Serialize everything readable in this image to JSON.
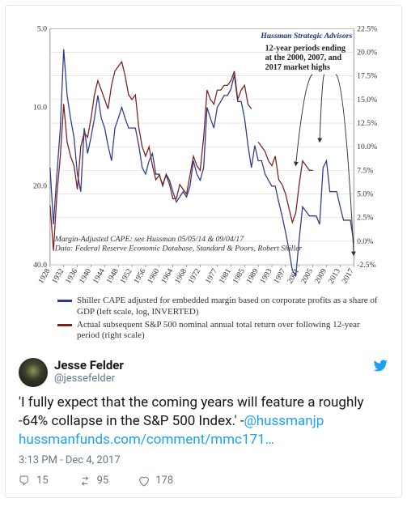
{
  "chart": {
    "attribution": "Hussman Strategic Advisors",
    "annotation": {
      "l1": "12-year periods ending",
      "l2": "at the 2000, 2007, and",
      "l3": "2017 market highs"
    },
    "note": {
      "l1": "Margin-Adjusted CAPE: see Hussman 05/05/14 & 09/04/17",
      "l2": "Data: Federal Reserve Economic Database, Standard & Poors, Robert Shiller"
    },
    "left_axis": {
      "ticks": [
        5.0,
        10.0,
        20.0,
        40.0
      ],
      "scale": "log_inverted"
    },
    "right_axis": {
      "ticks": [
        "22.5%",
        "20.0%",
        "17.5%",
        "15.0%",
        "12.5%",
        "10.0%",
        "7.5%",
        "5.0%",
        "2.5%",
        "0.0%",
        "-2.5%"
      ],
      "min": -2.5,
      "max": 22.5,
      "step": 2.5
    },
    "x_ticks": [
      1928,
      1932,
      1936,
      1940,
      1944,
      1948,
      1952,
      1956,
      1960,
      1964,
      1968,
      1972,
      1977,
      1981,
      1985,
      1989,
      1993,
      1997,
      2001,
      2005,
      2009,
      2013,
      2017
    ],
    "x_min": 1928,
    "x_max": 2017,
    "colors": {
      "series_a": "#2b3a8f",
      "series_b": "#7a2020",
      "grid": "#d9d4c9",
      "axis": "#666",
      "bg": "#ffffff"
    },
    "series_a": {
      "name": "Shiller CAPE adjusted (log, inverted)",
      "axis": "left",
      "points": [
        [
          1928,
          17
        ],
        [
          1929,
          28
        ],
        [
          1930,
          18
        ],
        [
          1931,
          12
        ],
        [
          1932,
          6
        ],
        [
          1933,
          9
        ],
        [
          1934,
          11
        ],
        [
          1935,
          13
        ],
        [
          1936,
          18
        ],
        [
          1937,
          21
        ],
        [
          1938,
          12
        ],
        [
          1939,
          15
        ],
        [
          1940,
          13
        ],
        [
          1941,
          11
        ],
        [
          1942,
          9
        ],
        [
          1943,
          11
        ],
        [
          1944,
          12
        ],
        [
          1945,
          14
        ],
        [
          1946,
          16
        ],
        [
          1947,
          12
        ],
        [
          1948,
          11
        ],
        [
          1949,
          10
        ],
        [
          1950,
          11
        ],
        [
          1951,
          12
        ],
        [
          1952,
          12
        ],
        [
          1953,
          12
        ],
        [
          1954,
          14
        ],
        [
          1955,
          17
        ],
        [
          1956,
          18
        ],
        [
          1957,
          16
        ],
        [
          1958,
          15
        ],
        [
          1959,
          18
        ],
        [
          1960,
          18
        ],
        [
          1961,
          20
        ],
        [
          1962,
          18
        ],
        [
          1963,
          19
        ],
        [
          1964,
          21
        ],
        [
          1965,
          23
        ],
        [
          1966,
          22
        ],
        [
          1967,
          21
        ],
        [
          1968,
          22
        ],
        [
          1969,
          20
        ],
        [
          1970,
          16
        ],
        [
          1971,
          18
        ],
        [
          1972,
          19
        ],
        [
          1973,
          17
        ],
        [
          1974,
          10
        ],
        [
          1975,
          11
        ],
        [
          1976,
          12
        ],
        [
          1977,
          10
        ],
        [
          1978,
          9.5
        ],
        [
          1979,
          9
        ],
        [
          1980,
          9
        ],
        [
          1981,
          8.5
        ],
        [
          1982,
          7.5
        ],
        [
          1983,
          9.5
        ],
        [
          1984,
          9.5
        ],
        [
          1985,
          11
        ],
        [
          1986,
          14
        ],
        [
          1987,
          17
        ],
        [
          1988,
          14
        ],
        [
          1989,
          16
        ],
        [
          1990,
          16
        ],
        [
          1991,
          18
        ],
        [
          1992,
          19
        ],
        [
          1993,
          20
        ],
        [
          1994,
          20
        ],
        [
          1995,
          23
        ],
        [
          1996,
          26
        ],
        [
          1997,
          30
        ],
        [
          1998,
          35
        ],
        [
          1999,
          42
        ],
        [
          2000,
          44
        ],
        [
          2001,
          32
        ],
        [
          2002,
          24
        ],
        [
          2003,
          25
        ],
        [
          2004,
          26
        ],
        [
          2005,
          26
        ],
        [
          2006,
          26
        ],
        [
          2007,
          28
        ],
        [
          2008,
          17
        ],
        [
          2009,
          16
        ],
        [
          2010,
          21
        ],
        [
          2011,
          21
        ],
        [
          2012,
          21
        ],
        [
          2013,
          24
        ],
        [
          2014,
          27
        ],
        [
          2015,
          27
        ],
        [
          2016,
          27
        ],
        [
          2017,
          33
        ]
      ]
    },
    "series_b": {
      "name": "Subsequent 12yr S&P 500 nominal total return",
      "axis": "right",
      "points": [
        [
          1928,
          3.8
        ],
        [
          1929,
          -1.0
        ],
        [
          1930,
          5.0
        ],
        [
          1931,
          9.0
        ],
        [
          1932,
          14.5
        ],
        [
          1933,
          10.5
        ],
        [
          1934,
          9.0
        ],
        [
          1935,
          8.0
        ],
        [
          1936,
          5.5
        ],
        [
          1937,
          10.0
        ],
        [
          1938,
          11.5
        ],
        [
          1939,
          11.0
        ],
        [
          1940,
          13.0
        ],
        [
          1941,
          15.5
        ],
        [
          1942,
          17.0
        ],
        [
          1943,
          16.0
        ],
        [
          1944,
          15.0
        ],
        [
          1945,
          14.0
        ],
        [
          1946,
          16.5
        ],
        [
          1947,
          18.0
        ],
        [
          1948,
          18.5
        ],
        [
          1949,
          19.0
        ],
        [
          1950,
          17.5
        ],
        [
          1951,
          15.5
        ],
        [
          1952,
          15.0
        ],
        [
          1953,
          15.5
        ],
        [
          1954,
          12.0
        ],
        [
          1955,
          10.0
        ],
        [
          1956,
          9.0
        ],
        [
          1957,
          10.0
        ],
        [
          1958,
          8.0
        ],
        [
          1959,
          6.5
        ],
        [
          1960,
          7.0
        ],
        [
          1961,
          6.0
        ],
        [
          1962,
          7.0
        ],
        [
          1963,
          6.0
        ],
        [
          1964,
          4.5
        ],
        [
          1965,
          4.5
        ],
        [
          1966,
          6.0
        ],
        [
          1967,
          5.5
        ],
        [
          1968,
          5.0
        ],
        [
          1969,
          7.0
        ],
        [
          1970,
          9.0
        ],
        [
          1971,
          8.0
        ],
        [
          1972,
          7.5
        ],
        [
          1973,
          11.0
        ],
        [
          1974,
          16.0
        ],
        [
          1975,
          15.0
        ],
        [
          1976,
          14.5
        ],
        [
          1977,
          16.0
        ],
        [
          1978,
          16.0
        ],
        [
          1979,
          16.5
        ],
        [
          1980,
          16.5
        ],
        [
          1981,
          17.0
        ],
        [
          1982,
          18.0
        ],
        [
          1983,
          15.0
        ],
        [
          1984,
          16.0
        ],
        [
          1985,
          16.5
        ],
        [
          1986,
          14.5
        ],
        [
          1987,
          14.0
        ],
        [
          2000,
          7.5
        ],
        [
          2007,
          10.0
        ],
        [
          2017,
          -2.0
        ]
      ],
      "recent_short": [
        [
          1989,
          10.5
        ],
        [
          1990,
          10.0
        ],
        [
          1991,
          9.5
        ],
        [
          1992,
          8.5
        ],
        [
          1993,
          8.0
        ],
        [
          1994,
          9.0
        ],
        [
          1995,
          6.5
        ],
        [
          1996,
          6.0
        ],
        [
          1997,
          5.0
        ],
        [
          1998,
          3.5
        ],
        [
          1999,
          2.0
        ],
        [
          2000,
          3.0
        ],
        [
          2001,
          6.0
        ],
        [
          2002,
          8.5
        ],
        [
          2003,
          8.0
        ],
        [
          2004,
          7.5
        ],
        [
          2005,
          7.5
        ]
      ]
    },
    "legend": {
      "a": "Shiller CAPE adjusted for embedded margin based on corporate profits as a share of GDP (left scale, log, INVERTED)",
      "b": "Actual subsequent S&P 500 nominal annual total return over following 12-year period (right scale)"
    },
    "arrows": [
      {
        "from_year": 1997.5,
        "label_anchor": "annotation"
      },
      {
        "from_year": 2004.5
      },
      {
        "from_year": 2014.5
      }
    ]
  },
  "tweet": {
    "name": "Jesse Felder",
    "handle": "@jessefelder",
    "text_parts": {
      "pre": "'I fully expect that the coming years will feature a roughly -64% collapse in the S&P 500 Index.' -",
      "mention": "@hussmanjp",
      "link": "hussmanfunds.com/comment/mmc171…"
    },
    "time": "3:13 PM - Dec 4, 2017",
    "counts": {
      "reply": "15",
      "retweet": "95",
      "like": "178"
    }
  }
}
